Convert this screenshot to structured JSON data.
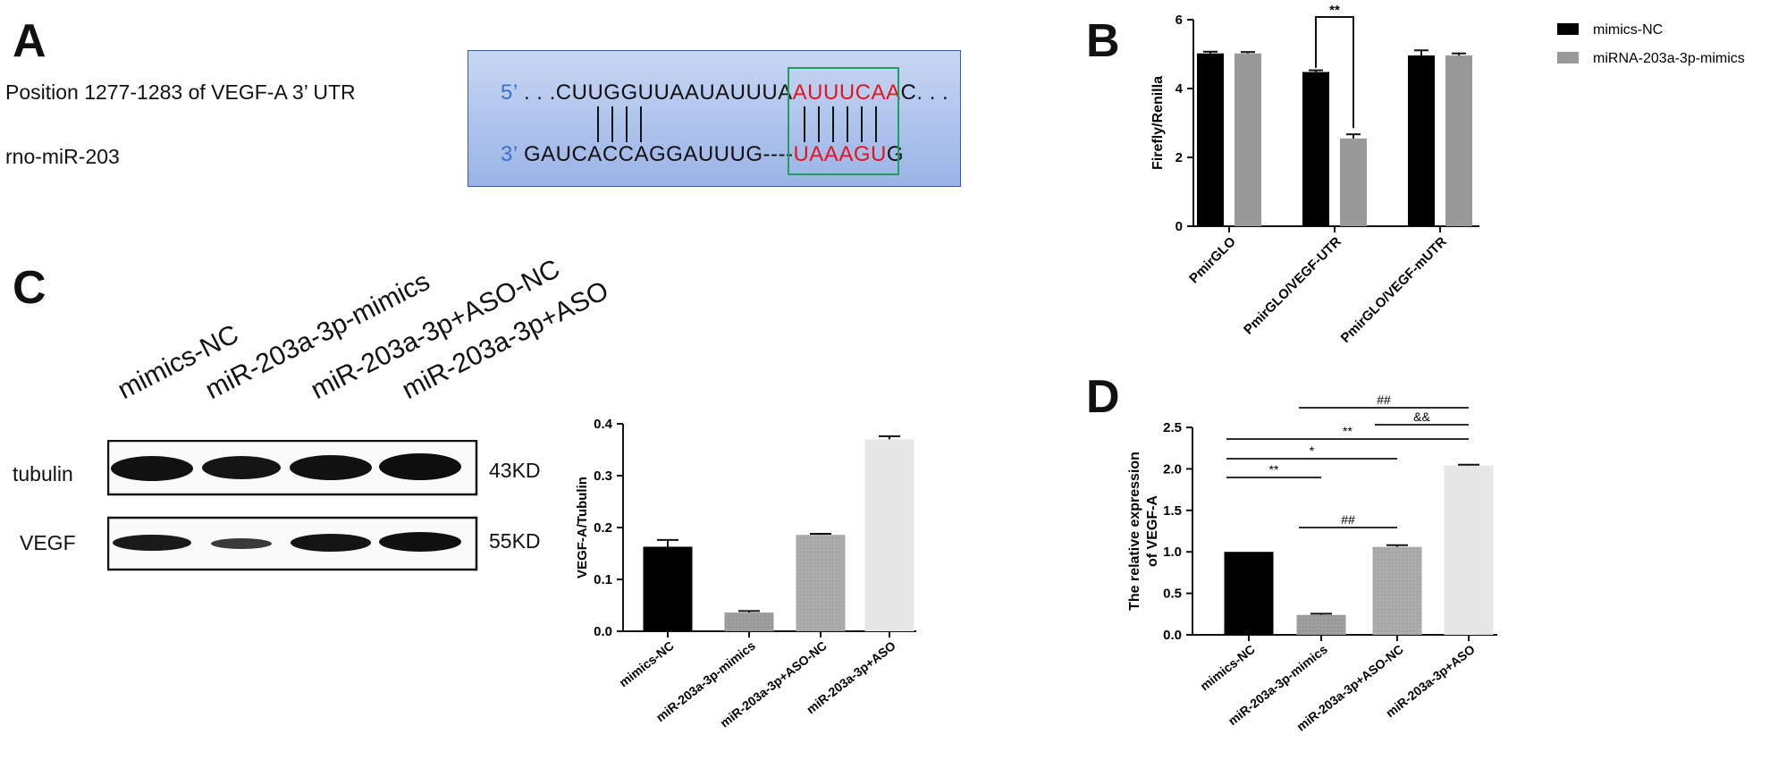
{
  "panels": {
    "a": "A",
    "b": "B",
    "c": "C",
    "d": "D"
  },
  "panel_a": {
    "label_top": "Position 1277-1283 of VEGF-A 3’ UTR",
    "label_bottom": "rno-miR-203",
    "five_prime": "5’",
    "three_prime": "3’",
    "top_seq_black": ". . .CUUGGUUAAUAUUUA",
    "top_seq_red": "AUUUCAA",
    "top_seq_tail": "C. . .",
    "bottom_seq_black": "GAUCACCAGGAUUUG----",
    "bottom_seq_red": "UAAAGU",
    "bottom_seq_tail": "G"
  },
  "panel_c_blot": {
    "lanes": [
      "mimics-NC",
      "miR-203a-3p-mimics",
      "miR-203a-3p+ASO-NC",
      "miR-203a-3p+ASO"
    ],
    "rows": [
      {
        "name": "tubulin",
        "size": "43KD"
      },
      {
        "name": "VEGF",
        "size": "55KD"
      }
    ]
  },
  "chart_data": [
    {
      "id": "B",
      "type": "bar",
      "categories": [
        "PmirGLO",
        "PmirGLO/VEGF-UTR",
        "PmirGLO/VEGF-mUTR"
      ],
      "series": [
        {
          "name": "mimics-NC",
          "values": [
            5.02,
            4.48,
            4.96
          ],
          "errors": [
            0.05,
            0.05,
            0.15
          ],
          "color": "#000000"
        },
        {
          "name": "miRNA-203a-3p-mimics",
          "values": [
            5.02,
            2.55,
            4.96
          ],
          "errors": [
            0.04,
            0.12,
            0.06
          ],
          "color": "#999999"
        }
      ],
      "ylabel": "Firefly/Renilla",
      "xlabel": "",
      "ylim": [
        0,
        6
      ],
      "yticks": [
        "0",
        "2",
        "4",
        "6"
      ],
      "annotations": [
        {
          "text": "**",
          "between": [
            "PmirGLO/VEGF-UTR:mimics-NC",
            "PmirGLO/VEGF-UTR:miRNA-203a-3p-mimics"
          ]
        }
      ],
      "legend": "top-right",
      "grid": false
    },
    {
      "id": "C-quant",
      "type": "bar",
      "categories": [
        "mimics-NC",
        "miR-203a-3p-mimics",
        "miR-203a-3p+ASO-NC",
        "miR-203a-3p+ASO"
      ],
      "values": [
        0.163,
        0.036,
        0.186,
        0.37
      ],
      "errors": [
        0.013,
        0.003,
        0.002,
        0.006
      ],
      "colors": [
        "#000000",
        "#9a9a9a",
        "#a8a8a8",
        "#e6e6e6"
      ],
      "ylabel": "VEGF-A/Tubulin",
      "ylim": [
        0,
        0.4
      ],
      "yticks": [
        "0.0",
        "0.1",
        "0.2",
        "0.3",
        "0.4"
      ],
      "grid": false
    },
    {
      "id": "D",
      "type": "bar",
      "categories": [
        "mimics-NC",
        "miR-203a-3p-mimics",
        "miR-203a-3p+ASO-NC",
        "miR-203a-3p+ASO"
      ],
      "values": [
        1.0,
        0.24,
        1.06,
        2.04
      ],
      "errors": [
        0.0,
        0.015,
        0.02,
        0.01
      ],
      "colors": [
        "#000000",
        "#9a9a9a",
        "#a8a8a8",
        "#e6e6e6"
      ],
      "ylabel_line1": "The relative expression",
      "ylabel_line2": "of VEGF-A",
      "ylim": [
        0,
        2.5
      ],
      "yticks": [
        "0.0",
        "0.5",
        "1.0",
        "1.5",
        "2.0",
        "2.5"
      ],
      "annotations": [
        {
          "text": "##",
          "from": 1,
          "to": 3,
          "level": 5
        },
        {
          "text": "&&",
          "from": 2,
          "to": 3,
          "level": 4
        },
        {
          "text": "**",
          "from": 0,
          "to": 3,
          "level": 3
        },
        {
          "text": "*",
          "from": 0,
          "to": 2,
          "level": 2
        },
        {
          "text": "**",
          "from": 0,
          "to": 1,
          "level": 1
        },
        {
          "text": "##",
          "from": 1,
          "to": 2,
          "level": 0
        }
      ],
      "grid": false
    }
  ]
}
